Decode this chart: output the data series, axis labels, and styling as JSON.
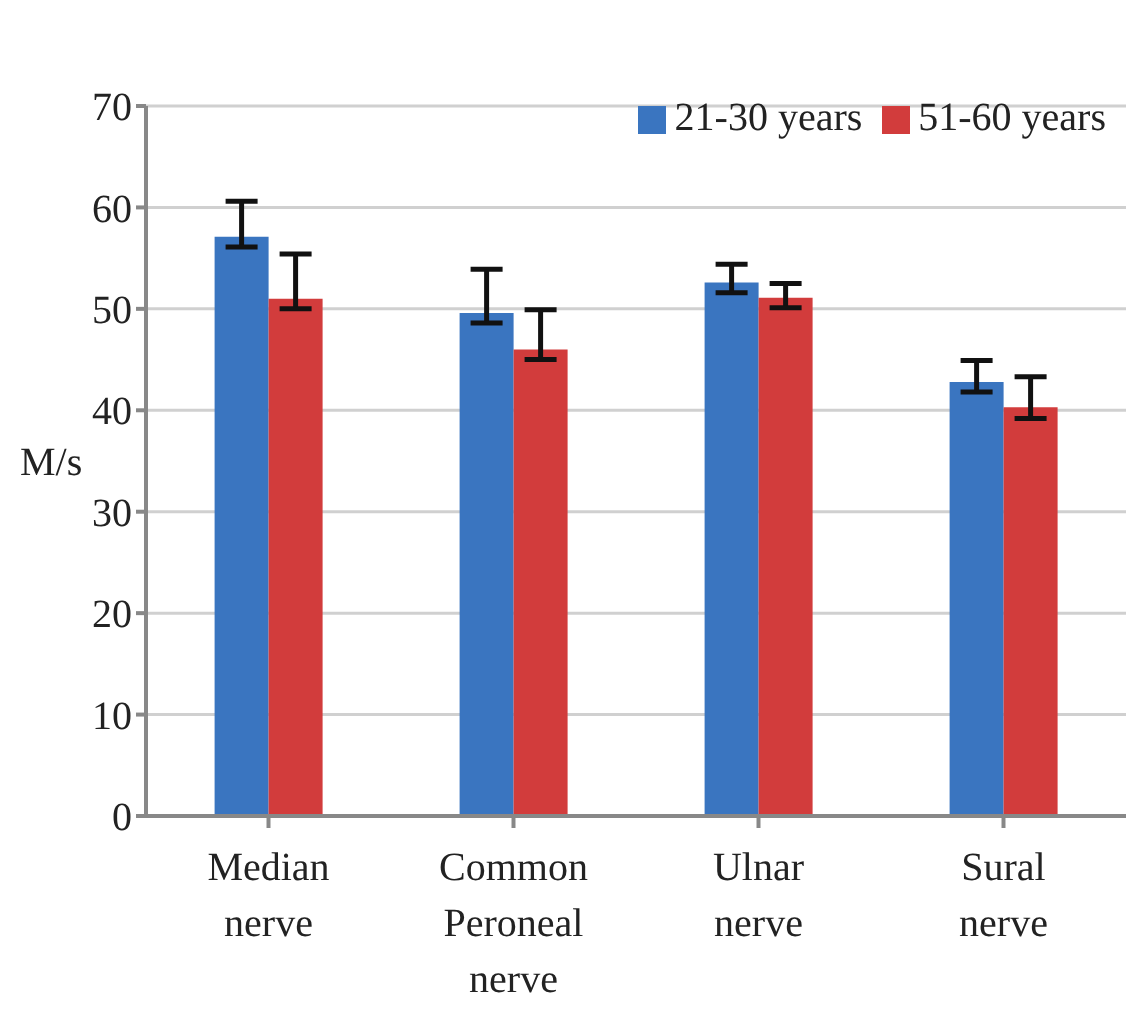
{
  "chart_data": {
    "type": "bar",
    "ylabel": "M/s",
    "categories": [
      "Median nerve",
      "Common Peroneal nerve",
      "Ulnar nerve",
      "Sural nerve"
    ],
    "series": [
      {
        "name": "21-30 years",
        "color": "#3a75c0",
        "values": [
          57.1,
          49.6,
          52.6,
          42.8
        ],
        "errors": [
          [
            56.1,
            60.6
          ],
          [
            48.6,
            53.9
          ],
          [
            51.6,
            54.4
          ],
          [
            41.8,
            44.9
          ]
        ]
      },
      {
        "name": "51-60 years",
        "color": "#d23c3c",
        "values": [
          51.0,
          46.0,
          51.1,
          40.3
        ],
        "errors": [
          [
            50.0,
            55.4
          ],
          [
            45.0,
            49.9
          ],
          [
            50.1,
            52.5
          ],
          [
            39.2,
            43.3
          ]
        ]
      }
    ],
    "ylim": [
      0,
      70
    ],
    "yticks": [
      0,
      10,
      20,
      30,
      40,
      50,
      60,
      70
    ],
    "grid": "y",
    "legend": "top right"
  }
}
